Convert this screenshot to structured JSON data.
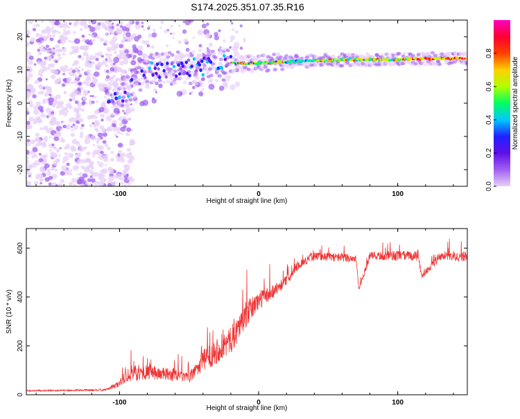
{
  "title": "S174.2025.351.07.35.R16",
  "chart_data": [
    {
      "type": "heatmap",
      "xlabel": "Height of straight line (km)",
      "ylabel": "Frequency (Hz)",
      "xlim": [
        -167,
        150
      ],
      "ylim": [
        -25,
        25
      ],
      "xticks": [
        -100,
        0,
        100
      ],
      "yticks": [
        -20,
        -10,
        0,
        10,
        20
      ],
      "colorbar": {
        "label": "Normalized spectral amplitude",
        "range": [
          0,
          1
        ],
        "ticks": [
          "0.0",
          "0.2",
          "0.4",
          "0.6",
          "0.8"
        ],
        "colors": [
          "#e8d0f8",
          "#a060f0",
          "#6010e8",
          "#2020ff",
          "#00c8ff",
          "#00ff60",
          "#b0ff00",
          "#ffd000",
          "#ff4000",
          "#ff0030",
          "#ff00c0"
        ]
      },
      "description_points": {
        "ridge": [
          [
            -100,
            1
          ],
          [
            -90,
            6
          ],
          [
            -80,
            10
          ],
          [
            -60,
            10.5
          ],
          [
            -40,
            11
          ],
          [
            -20,
            12
          ],
          [
            0,
            12
          ],
          [
            20,
            12.5
          ],
          [
            60,
            13
          ],
          [
            100,
            13.2
          ],
          [
            150,
            13.5
          ]
        ],
        "scatter_noise_x_range": [
          -167,
          -100
        ]
      }
    },
    {
      "type": "line",
      "xlabel": "Height of straight line (km)",
      "ylabel": "SNR (10 * v/v)",
      "xlim": [
        -167,
        150
      ],
      "ylim": [
        0,
        680
      ],
      "xticks": [
        -100,
        0,
        100
      ],
      "yticks": [
        0,
        200,
        400,
        600
      ],
      "color": "#ee3333",
      "envelope": {
        "x": [
          -167,
          -110,
          -100,
          -95,
          -80,
          -60,
          -50,
          -40,
          -30,
          -20,
          -10,
          0,
          10,
          20,
          30,
          40,
          60,
          70,
          72,
          80,
          100,
          115,
          117,
          130,
          150
        ],
        "base": [
          15,
          18,
          40,
          70,
          80,
          70,
          60,
          120,
          160,
          200,
          300,
          370,
          410,
          460,
          530,
          560,
          555,
          550,
          430,
          560,
          560,
          560,
          480,
          555,
          555
        ],
        "spread": [
          6,
          8,
          30,
          60,
          60,
          50,
          40,
          90,
          110,
          110,
          110,
          80,
          60,
          40,
          30,
          35,
          35,
          35,
          15,
          35,
          40,
          40,
          20,
          40,
          40
        ]
      }
    }
  ]
}
